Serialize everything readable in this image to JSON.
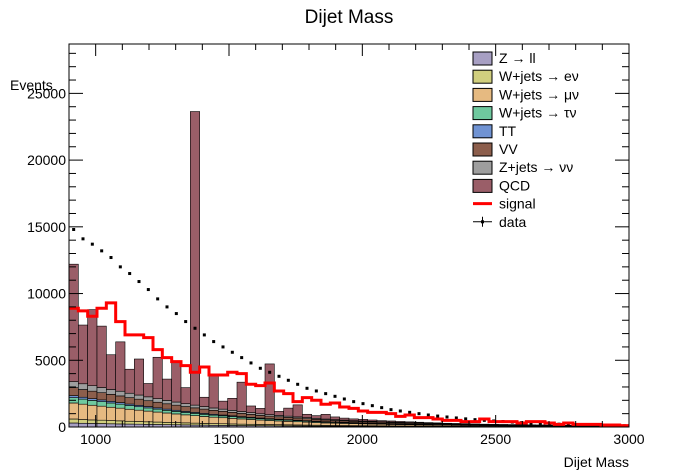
{
  "chart_data": {
    "type": "bar",
    "title": "Dijet Mass",
    "xlabel": "Dijet Mass",
    "ylabel": "Events",
    "xlim": [
      900,
      3000
    ],
    "ylim": [
      0,
      28700
    ],
    "xticks": [
      1000,
      1500,
      2000,
      2500,
      3000
    ],
    "yticks": [
      0,
      5000,
      10000,
      15000,
      20000,
      25000
    ],
    "bin_width": 35,
    "stacked": true,
    "legend_position": "top-right",
    "x": [
      900,
      935,
      970,
      1005,
      1040,
      1075,
      1110,
      1145,
      1180,
      1215,
      1250,
      1285,
      1320,
      1355,
      1390,
      1425,
      1460,
      1495,
      1530,
      1565,
      1600,
      1635,
      1670,
      1705,
      1740,
      1775,
      1810,
      1845,
      1880,
      1915,
      1950,
      1985,
      2020,
      2055,
      2090,
      2125,
      2160,
      2195,
      2230,
      2265,
      2300,
      2335,
      2370,
      2405,
      2440,
      2475,
      2510,
      2545,
      2580,
      2615,
      2650,
      2685,
      2720,
      2755,
      2790,
      2825,
      2860,
      2895,
      2930,
      2965
    ],
    "series": [
      {
        "name": "Z → ll",
        "color": "#a79fc3",
        "values": [
          300,
          280,
          270,
          260,
          240,
          230,
          220,
          210,
          200,
          190,
          180,
          170,
          160,
          150,
          140,
          130,
          125,
          120,
          110,
          105,
          100,
          95,
          90,
          85,
          80,
          75,
          70,
          65,
          60,
          58,
          55,
          52,
          50,
          47,
          44,
          42,
          40,
          38,
          36,
          34,
          32,
          30,
          28,
          26,
          25,
          24,
          22,
          21,
          20,
          19,
          18,
          17,
          16,
          15,
          14,
          13,
          12,
          11,
          10,
          10
        ]
      },
      {
        "name": "W+jets → eν",
        "color": "#d1cf7e",
        "values": [
          300,
          280,
          260,
          250,
          240,
          230,
          210,
          200,
          190,
          180,
          170,
          160,
          150,
          140,
          130,
          125,
          120,
          110,
          105,
          100,
          95,
          90,
          85,
          80,
          75,
          70,
          65,
          60,
          55,
          52,
          50,
          48,
          45,
          42,
          40,
          38,
          36,
          34,
          32,
          30,
          28,
          26,
          25,
          24,
          22,
          21,
          20,
          19,
          18,
          17,
          16,
          15,
          14,
          13,
          12,
          11,
          10,
          10,
          9,
          8
        ]
      },
      {
        "name": "W+jets → μν",
        "color": "#e6ba81",
        "values": [
          1200,
          1150,
          1100,
          1050,
          1000,
          950,
          900,
          850,
          800,
          750,
          700,
          650,
          600,
          560,
          520,
          480,
          450,
          420,
          390,
          360,
          330,
          300,
          280,
          260,
          240,
          220,
          200,
          180,
          170,
          160,
          150,
          140,
          130,
          120,
          110,
          100,
          95,
          90,
          85,
          80,
          75,
          70,
          65,
          60,
          55,
          50,
          48,
          46,
          44,
          42,
          40,
          38,
          36,
          34,
          32,
          30,
          28,
          26,
          24,
          22
        ]
      },
      {
        "name": "W+jets → τν",
        "color": "#6fc99f",
        "values": [
          400,
          380,
          360,
          340,
          320,
          300,
          280,
          260,
          240,
          220,
          200,
          190,
          180,
          170,
          160,
          150,
          140,
          130,
          120,
          110,
          100,
          95,
          90,
          85,
          80,
          75,
          70,
          65,
          60,
          55,
          50,
          48,
          46,
          44,
          42,
          40,
          38,
          36,
          34,
          32,
          30,
          28,
          26,
          25,
          24,
          22,
          21,
          20,
          19,
          18,
          17,
          16,
          15,
          14,
          13,
          12,
          11,
          10,
          10,
          9
        ]
      },
      {
        "name": "TT",
        "color": "#7093d3",
        "values": [
          150,
          140,
          135,
          130,
          125,
          120,
          110,
          105,
          100,
          95,
          90,
          85,
          80,
          75,
          70,
          66,
          62,
          58,
          54,
          50,
          47,
          44,
          41,
          38,
          35,
          33,
          31,
          29,
          27,
          25,
          23,
          21,
          20,
          19,
          18,
          17,
          16,
          15,
          14,
          13,
          12,
          11,
          10,
          10,
          9,
          9,
          8,
          8,
          7,
          7,
          6,
          6,
          5,
          5,
          5,
          4,
          4,
          4,
          3,
          3
        ]
      },
      {
        "name": "VV",
        "color": "#8c5e4c",
        "values": [
          600,
          580,
          560,
          540,
          520,
          500,
          480,
          460,
          440,
          420,
          400,
          380,
          360,
          340,
          320,
          300,
          280,
          260,
          240,
          220,
          200,
          190,
          180,
          170,
          160,
          150,
          140,
          130,
          120,
          110,
          100,
          95,
          90,
          85,
          80,
          75,
          70,
          65,
          60,
          55,
          50,
          48,
          46,
          44,
          42,
          40,
          38,
          36,
          34,
          32,
          30,
          28,
          26,
          24,
          22,
          20,
          18,
          16,
          14,
          12
        ]
      },
      {
        "name": "Z+jets → νν",
        "color": "#9e9e9e",
        "values": [
          450,
          430,
          410,
          390,
          370,
          350,
          330,
          310,
          290,
          270,
          250,
          235,
          220,
          205,
          190,
          175,
          160,
          150,
          140,
          130,
          120,
          112,
          104,
          96,
          88,
          80,
          74,
          68,
          62,
          56,
          50,
          47,
          44,
          41,
          38,
          35,
          32,
          30,
          28,
          26,
          24,
          22,
          20,
          18,
          16,
          15,
          14,
          13,
          12,
          11,
          10,
          9,
          8,
          7,
          6,
          6,
          5,
          5,
          4,
          4
        ]
      },
      {
        "name": "QCD",
        "color": "#9a5e68",
        "values": [
          8800,
          4400,
          5700,
          4600,
          2600,
          3700,
          1800,
          2700,
          1000,
          3100,
          1600,
          3000,
          1200,
          22000,
          700,
          2400,
          600,
          900,
          2200,
          500,
          400,
          3800,
          300,
          600,
          900,
          250,
          200,
          350,
          200,
          150,
          130,
          120,
          100,
          80,
          80,
          70,
          60,
          50,
          40,
          40,
          30,
          30,
          30,
          20,
          20,
          20,
          20,
          20,
          20,
          15,
          15,
          15,
          15,
          15,
          15,
          10,
          10,
          10,
          10,
          10
        ]
      }
    ],
    "signal": {
      "name": "signal",
      "color": "#ff0000",
      "values": [
        8900,
        8700,
        8300,
        8900,
        9300,
        7900,
        6900,
        6900,
        6700,
        5800,
        5200,
        4900,
        4600,
        4100,
        4500,
        3900,
        3900,
        4100,
        4000,
        3200,
        3100,
        3300,
        2700,
        2500,
        1900,
        2200,
        2000,
        1700,
        1800,
        1500,
        1400,
        1200,
        1100,
        1100,
        1000,
        800,
        900,
        700,
        700,
        600,
        500,
        500,
        400,
        400,
        600,
        400,
        400,
        400,
        300,
        400,
        400,
        300,
        200,
        300,
        200,
        200,
        200,
        150,
        150,
        100
      ]
    },
    "data": {
      "name": "data",
      "color": "#000000",
      "values": [
        14800,
        14100,
        13700,
        13200,
        12700,
        12000,
        11500,
        10900,
        10300,
        9600,
        9000,
        8500,
        7900,
        7400,
        6900,
        6400,
        6000,
        5600,
        5200,
        4800,
        4400,
        4100,
        3800,
        3500,
        3200,
        2900,
        2700,
        2500,
        2300,
        2100,
        1900,
        1750,
        1600,
        1450,
        1300,
        1200,
        1100,
        1000,
        900,
        820,
        750,
        680,
        610,
        550,
        500,
        450,
        410,
        370,
        330,
        300,
        270,
        240,
        210,
        190,
        170,
        150,
        130,
        115,
        100,
        90
      ]
    }
  }
}
